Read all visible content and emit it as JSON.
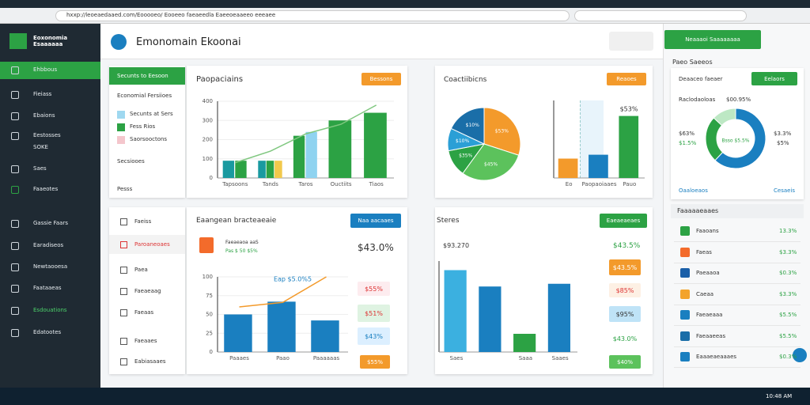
{
  "browser": {
    "url": "hxxp://leoeaedaaed.com/Eooooeo/ Eooeeo faeaeedla Eaeeoeaaeeo eeeaee"
  },
  "sidebar": {
    "brand": "Eoxonomia Esaaaaaa",
    "items": [
      "Ehbbous",
      "Fieiass",
      "Ebaions",
      "Eestosses",
      "SOKE",
      "Saes",
      "Faaeotes",
      "Gassie Faars",
      "Earadiseos",
      "Newtaooesa",
      "Faataaeas",
      "Esdouations",
      "Edatootes"
    ]
  },
  "header": {
    "title": "Emonomain Ekoonai"
  },
  "card1": {
    "menu_title": "Secunts to Eesoon",
    "menu_subtitle": "Economial Fersiioes",
    "legend": [
      {
        "label": "Secunts at Sers",
        "color": "#9fd8f0"
      },
      {
        "label": "Fess Rios",
        "color": "#2ca244"
      },
      {
        "label": "Saorsooctons",
        "color": "#f4c6cc"
      }
    ],
    "menu_foot": "Secsiooes",
    "menu_foot2": "Pesss",
    "title": "Paopaciains",
    "button": "Bessons",
    "chart": {
      "categories": [
        "Tapsoons",
        "Tands",
        "Taros",
        "Ouctiits",
        "Tiaos"
      ],
      "ylim": [
        0,
        400
      ],
      "yticks": [
        0,
        100,
        200,
        300,
        400
      ],
      "series": [
        {
          "color": "#1a9aa0",
          "values": [
            90,
            90,
            null,
            null,
            null
          ]
        },
        {
          "color": "#2ca244",
          "values": [
            90,
            90,
            220,
            300,
            340
          ]
        },
        {
          "color": "#f2c94c",
          "values": [
            null,
            90,
            null,
            null,
            null
          ]
        },
        {
          "color": "#8fd3f0",
          "values": [
            null,
            null,
            240,
            null,
            null
          ]
        }
      ],
      "line": {
        "color": "#7fc77f",
        "values": [
          80,
          140,
          230,
          280,
          380
        ]
      }
    }
  },
  "card2": {
    "title": "Coactiibicns",
    "button": "Reaoes",
    "pie": {
      "values": [
        30,
        30,
        12,
        10,
        18
      ],
      "colors": [
        "#f39a2b",
        "#5cc25c",
        "#2ca244",
        "#2b9fd6",
        "#1a6ea8"
      ],
      "labels": [
        "$53%",
        "$45%",
        "$35%",
        "$10%",
        "$10%"
      ]
    },
    "bars": {
      "categories": [
        "Eo",
        "Paopaoiaaes",
        "Pauo"
      ],
      "ylim": [
        0,
        100
      ],
      "series": [
        {
          "colors": [
            "#f39a2b",
            "#1a7fc0",
            "#2ca244"
          ],
          "values": [
            25,
            30,
            80
          ]
        }
      ],
      "top_label": "$53%"
    }
  },
  "card3": {
    "menu": [
      "Faeiss",
      "Paroaneoaes",
      "Paea",
      "Faeaeaag",
      "Faeaas",
      "Faeaaes",
      "Eabiasaaes"
    ],
    "title": "Eaangean bracteaeaie",
    "button": "Naa aacaaes",
    "item_title": "Faeaeaoa aaS",
    "item_sub": "Pas $ 50 $5%",
    "big_value": "$43.0%",
    "tags": [
      "$55%",
      "$51%",
      "$43%"
    ],
    "button2": "$55%",
    "chart": {
      "title": "Eap $5.0%5",
      "categories": [
        "Paaaes",
        "Paao",
        "Paaaaaas"
      ],
      "ylim": [
        0,
        100
      ],
      "yticks": [
        0,
        25,
        50,
        75,
        100
      ],
      "series": [
        {
          "color": "#1a7fc0",
          "values": [
            50,
            67,
            42
          ]
        }
      ],
      "line": {
        "color": "#f39a2b",
        "values": [
          60,
          66,
          100
        ]
      }
    }
  },
  "card4": {
    "title": "Steres",
    "button": "Eaeaeaeaes",
    "subtitle": "$93.270",
    "top_value": "$43.5%",
    "tags": [
      "$43.5%",
      "$85%",
      "$95%",
      "$43.0%"
    ],
    "button2": "$40%",
    "chart": {
      "categories": [
        "Saes",
        null,
        "Saaa",
        "Saaes"
      ],
      "ylim": [
        0,
        100
      ],
      "series": [
        {
          "colors": [
            "#3bb0e0",
            "#1a7fc0",
            "#2ca244",
            "#1a7fc0"
          ],
          "values": [
            90,
            72,
            20,
            75
          ]
        }
      ]
    }
  },
  "right": {
    "button": "Neaaaoi Saaaaaaaa",
    "section": "Paeo Saeeos",
    "card_title": "Deaaceo faeaer",
    "card_button": "Eelaors",
    "metric_label": "Raclodaoloas",
    "metric_value": "$00.95%",
    "donut": {
      "values": [
        62,
        25,
        13
      ],
      "colors": [
        "#1a7fc0",
        "#2ca244",
        "#bde8c4"
      ],
      "center": "Bsso $5.5%"
    },
    "left_labels": [
      "$63%",
      "$1.5%"
    ],
    "right_labels": [
      "$3.3%",
      "$5%"
    ],
    "foot_left": "Oaaloeaos",
    "foot_right": "Cesaeis",
    "list_title": "Faaaaaeaaes",
    "list": [
      {
        "label": "Faaoans",
        "value": "13.3%"
      },
      {
        "label": "Faeas",
        "value": "$3.3%"
      },
      {
        "label": "Paeaaoa",
        "value": "$0.3%"
      },
      {
        "label": "Caeaa",
        "value": "$3.3%"
      },
      {
        "label": "Faeaeaaa",
        "value": "$5.5%"
      },
      {
        "label": "Faeaaeeas",
        "value": "$5.5%"
      },
      {
        "label": "Eaaaeaeaaaes",
        "value": "$0.3%"
      }
    ]
  },
  "taskbar": {
    "time": "10:48 AM"
  }
}
